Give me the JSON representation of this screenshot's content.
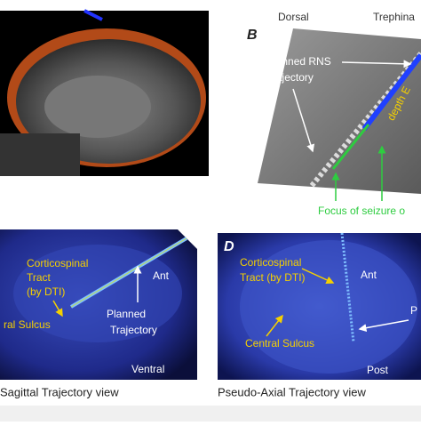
{
  "panel_b": {
    "letter": "B",
    "dorsal": "Dorsal",
    "trephine": "Trephina",
    "trajectory": [
      "Planned RNS",
      "Trajectory"
    ],
    "electrode": "depth E",
    "focus": "Focus of seizure o"
  },
  "panel_c": {
    "tract": [
      "Corticospinal",
      "Tract",
      "(by DTI)"
    ],
    "ant": "Ant",
    "trajectory": [
      "Planned",
      "Trajectory"
    ],
    "sulcus": "ral Sulcus",
    "ventral": "Ventral",
    "caption": "Sagittal Trajectory view"
  },
  "panel_d": {
    "letter": "D",
    "tract": [
      "Corticospinal",
      "Tract (by DTI)"
    ],
    "ant": "Ant",
    "trajectory": "P",
    "sulcus": "Central Sulcus",
    "post": "Post",
    "caption": "Pseudo-Axial Trajectory view"
  }
}
